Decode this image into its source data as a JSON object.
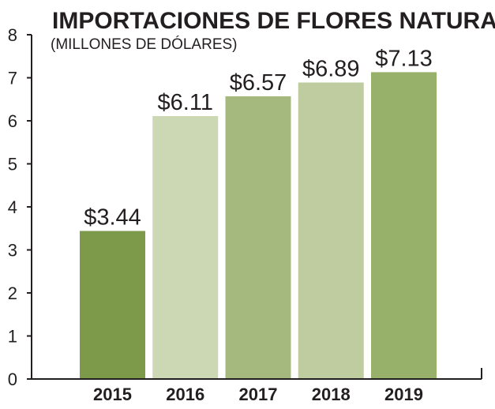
{
  "chart_data": {
    "type": "bar",
    "title": "IMPORTACIONES DE FLORES NATURALES",
    "subtitle": "(MILLONES DE DÓLARES)",
    "categories": [
      "2015",
      "2016",
      "2017",
      "2018",
      "2019"
    ],
    "values": [
      3.44,
      6.11,
      6.57,
      6.89,
      7.13
    ],
    "data_labels": [
      "$3.44",
      "$6.11",
      "$6.57",
      "$6.89",
      "$7.13"
    ],
    "bar_colors": [
      "#7d9a4a",
      "#ccd7b4",
      "#a5b87e",
      "#bfcc9f",
      "#97b06a"
    ],
    "yticks": [
      0,
      1,
      2,
      3,
      4,
      5,
      6,
      7,
      8
    ],
    "ylim": [
      0,
      8
    ],
    "grid": false,
    "legend": "none",
    "axis_color": "#231f20"
  }
}
